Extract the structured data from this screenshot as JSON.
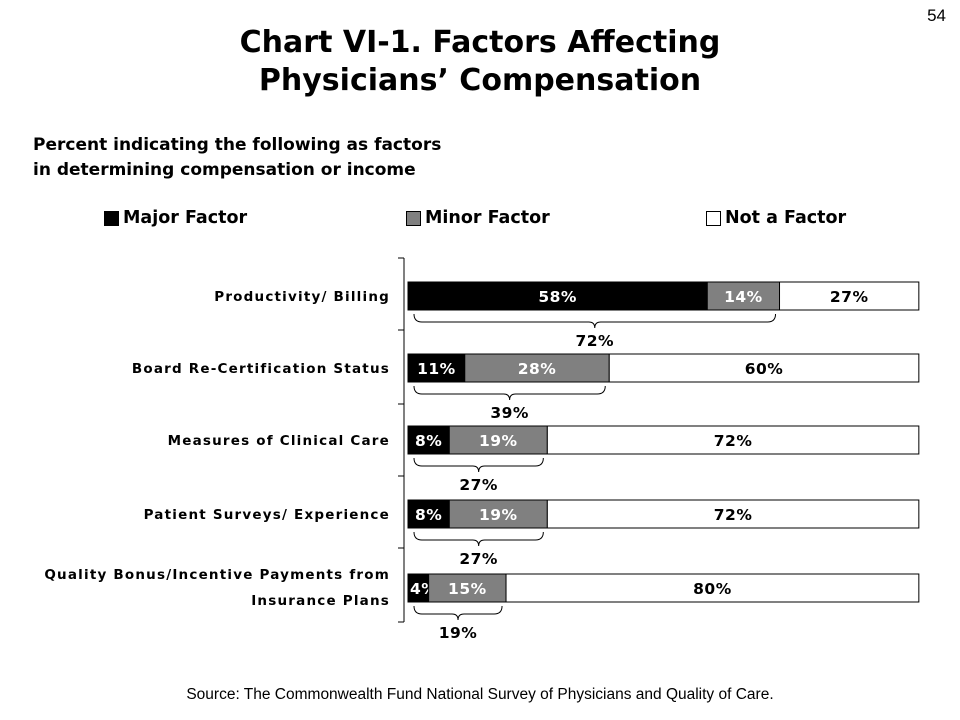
{
  "page_number": "54",
  "title_lines": [
    "Chart VI-1. Factors Affecting",
    "Physicians’ Compensation"
  ],
  "subtitle_lines": [
    "Percent indicating the following as factors",
    "in determining compensation or income"
  ],
  "source": "Source: The Commonwealth Fund National Survey of Physicians and Quality of Care.",
  "colors": {
    "major": "#000000",
    "minor": "#808080",
    "not": "#ffffff"
  },
  "chart_data": {
    "type": "bar",
    "orientation": "horizontal",
    "stacked": true,
    "xlim": [
      0,
      100
    ],
    "grid": false,
    "legend_position": "top",
    "categories": [
      [
        "Productivity/ Billing"
      ],
      [
        "Board Re-Certification Status"
      ],
      [
        "Measures of Clinical Care"
      ],
      [
        "Patient Surveys/ Experience"
      ],
      [
        "Quality Bonus/Incentive Payments from",
        "Insurance Plans"
      ]
    ],
    "series": [
      {
        "name": "Major Factor",
        "values": [
          58,
          11,
          8,
          8,
          4
        ],
        "labels": [
          "58%",
          "11%",
          "8%",
          "8%",
          "4%"
        ]
      },
      {
        "name": "Minor Factor",
        "values": [
          14,
          28,
          19,
          19,
          15
        ],
        "labels": [
          "14%",
          "28%",
          "19%",
          "19%",
          "15%"
        ]
      },
      {
        "name": "Not a Factor",
        "values": [
          27,
          60,
          72,
          72,
          80
        ],
        "labels": [
          "27%",
          "60%",
          "72%",
          "72%",
          "80%"
        ]
      }
    ],
    "bracket_totals": [
      "72%",
      "39%",
      "27%",
      "27%",
      "19%"
    ]
  }
}
